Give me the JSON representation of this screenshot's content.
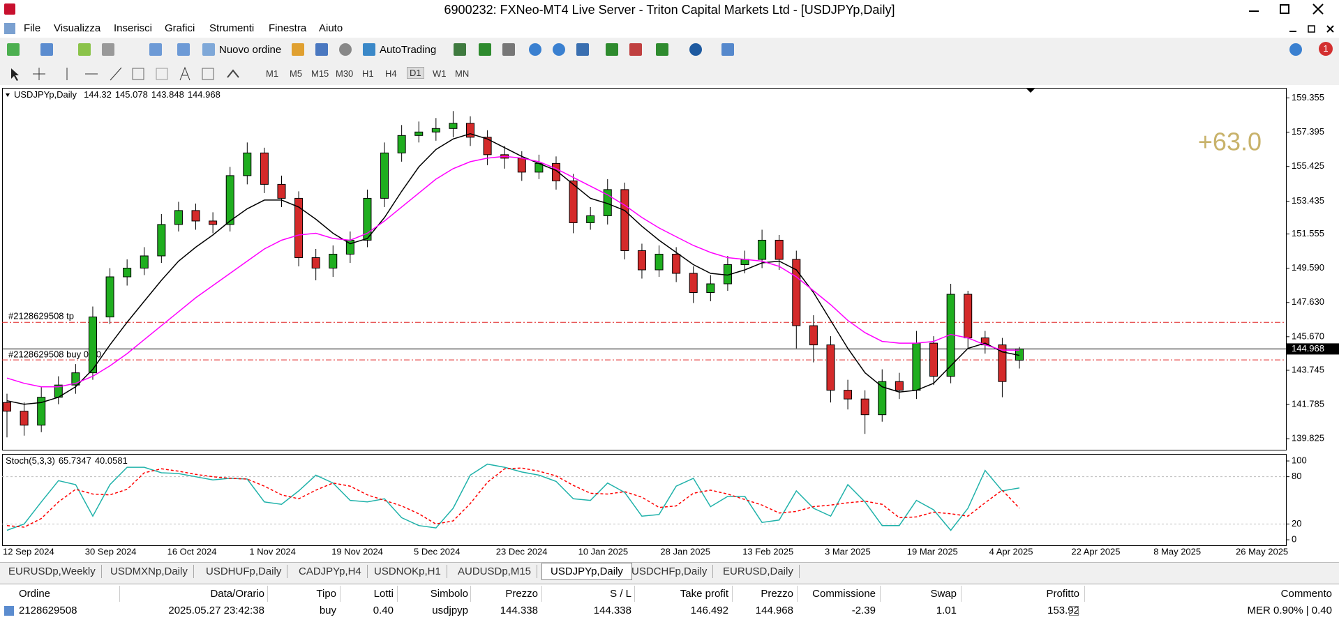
{
  "window": {
    "title": "6900232: FXNeo-MT4 Live Server - Triton Capital Markets Ltd - [USDJPYp,Daily]"
  },
  "menu": [
    "File",
    "Visualizza",
    "Inserisci",
    "Grafici",
    "Strumenti",
    "Finestra",
    "Aiuto"
  ],
  "toolbar": {
    "new_order": "Nuovo ordine",
    "autotrading": "AutoTrading",
    "badge": "1",
    "timeframes": [
      "M1",
      "M5",
      "M15",
      "M30",
      "H1",
      "H4",
      "D1",
      "W1",
      "MN"
    ]
  },
  "chart_data": {
    "type": "candlestick",
    "title": "USDJPYp,Daily",
    "open": [
      141.9,
      141.4,
      140.6,
      142.2,
      142.9,
      143.6,
      146.8,
      149.1,
      149.6,
      150.3,
      152.1,
      152.9,
      152.3,
      152.1,
      154.9,
      156.2,
      154.4,
      153.6,
      150.2,
      149.6,
      150.4,
      151.2,
      153.6,
      156.2,
      157.2,
      157.4,
      157.6,
      157.9,
      157.1,
      156.1,
      155.9,
      155.1,
      155.6,
      154.6,
      152.2,
      152.6,
      154.1,
      150.6,
      149.5,
      150.4,
      149.3,
      148.2,
      148.7,
      149.8,
      150.1,
      151.2,
      150.1,
      146.3,
      145.2,
      142.6,
      142.1,
      141.2,
      143.1,
      142.6,
      145.3,
      143.4,
      148.1,
      145.6,
      145.2,
      144.32
    ],
    "high": [
      142.4,
      141.9,
      142.8,
      143.4,
      144.1,
      147.4,
      149.6,
      150.1,
      150.8,
      152.7,
      153.4,
      153.3,
      152.8,
      155.4,
      156.8,
      156.5,
      154.9,
      154.0,
      150.7,
      150.9,
      151.7,
      154.1,
      156.8,
      157.8,
      158.0,
      158.2,
      158.6,
      158.3,
      157.5,
      156.6,
      156.3,
      156.1,
      156.0,
      155.0,
      153.1,
      154.7,
      154.5,
      151.0,
      150.9,
      150.8,
      149.7,
      149.2,
      150.3,
      150.6,
      151.8,
      151.5,
      150.6,
      146.9,
      145.7,
      143.2,
      142.6,
      143.8,
      143.6,
      146.0,
      145.7,
      148.7,
      148.3,
      146.0,
      145.6,
      145.078
    ],
    "low": [
      139.9,
      140.0,
      140.2,
      141.8,
      142.4,
      143.2,
      146.4,
      148.6,
      149.2,
      149.9,
      151.7,
      151.8,
      151.6,
      151.7,
      154.4,
      153.9,
      153.1,
      149.7,
      148.9,
      149.1,
      149.9,
      150.8,
      153.1,
      155.7,
      156.8,
      156.9,
      157.1,
      156.6,
      155.5,
      155.3,
      154.6,
      154.7,
      154.1,
      151.6,
      151.8,
      152.1,
      150.1,
      149.0,
      149.1,
      148.8,
      147.6,
      147.7,
      148.3,
      149.3,
      149.6,
      149.5,
      145.0,
      144.2,
      141.9,
      141.5,
      140.1,
      140.8,
      142.1,
      142.1,
      142.9,
      143.0,
      145.0,
      144.7,
      142.2,
      143.848
    ],
    "close": [
      141.4,
      140.6,
      142.2,
      142.9,
      143.6,
      146.8,
      149.1,
      149.6,
      150.3,
      152.1,
      152.9,
      152.3,
      152.1,
      154.9,
      156.2,
      154.4,
      153.6,
      150.2,
      149.6,
      150.4,
      151.2,
      153.6,
      156.2,
      157.2,
      157.4,
      157.6,
      157.9,
      157.1,
      156.1,
      155.9,
      155.1,
      155.6,
      154.6,
      152.2,
      152.6,
      154.1,
      150.6,
      149.5,
      150.4,
      149.3,
      148.2,
      148.7,
      149.8,
      150.1,
      151.2,
      150.1,
      146.3,
      145.2,
      142.6,
      142.1,
      141.2,
      143.1,
      142.6,
      145.3,
      143.4,
      148.1,
      145.6,
      145.2,
      143.1,
      144.968
    ],
    "up_color": "#1fae1f",
    "down_color": "#d42a2a",
    "outline_color": "#000000",
    "ma": [
      {
        "color": "#000000",
        "values": [
          142.0,
          141.8,
          141.9,
          142.2,
          142.8,
          143.8,
          145.2,
          146.5,
          147.7,
          148.9,
          150.0,
          150.8,
          151.5,
          152.3,
          153.0,
          153.5,
          153.5,
          153.1,
          152.4,
          151.6,
          151.0,
          151.3,
          152.5,
          154.0,
          155.4,
          156.4,
          157.0,
          157.3,
          157.0,
          156.5,
          156.0,
          155.6,
          155.2,
          154.4,
          153.6,
          153.3,
          152.9,
          152.0,
          151.2,
          150.5,
          149.8,
          149.3,
          149.2,
          149.5,
          149.9,
          150.0,
          149.5,
          148.2,
          146.6,
          145.0,
          143.6,
          142.8,
          142.5,
          142.6,
          143.0,
          144.0,
          145.0,
          145.3,
          144.8,
          144.6
        ]
      },
      {
        "color": "#ff00ff",
        "values": [
          143.3,
          143.0,
          142.8,
          142.8,
          143.0,
          143.4,
          144.0,
          144.7,
          145.5,
          146.3,
          147.1,
          147.9,
          148.6,
          149.3,
          150.0,
          150.7,
          151.2,
          151.5,
          151.6,
          151.3,
          151.2,
          151.6,
          152.3,
          153.1,
          153.9,
          154.7,
          155.3,
          155.7,
          155.9,
          156.0,
          155.9,
          155.7,
          155.3,
          154.8,
          154.3,
          153.8,
          153.2,
          152.5,
          151.9,
          151.4,
          150.9,
          150.5,
          150.2,
          150.1,
          150.0,
          149.7,
          149.1,
          148.3,
          147.5,
          146.6,
          145.9,
          145.4,
          145.3,
          145.3,
          145.4,
          145.8,
          145.6,
          145.2,
          144.9,
          144.9
        ]
      }
    ],
    "ylim": [
      139.19,
      159.89
    ],
    "yticks": [
      159.355,
      157.395,
      155.425,
      153.435,
      151.555,
      {
        "value": 149.59,
        "label": "149.590"
      },
      {
        "value": 147.63,
        "label": "147.630"
      },
      {
        "value": 145.67,
        "label": "145.670"
      },
      143.745,
      141.785,
      139.825
    ],
    "annotations": {
      "tp": "#2128629508 tp",
      "buy": "#2128629508 buy 0.40",
      "profit": "+63.0"
    },
    "xtick_labels": [
      "12 Sep 2024",
      "30 Sep 2024",
      "16 Oct 2024",
      "1 Nov 2024",
      "19 Nov 2024",
      "5 Dec 2024",
      "23 Dec 2024",
      "10 Jan 2025",
      "28 Jan 2025",
      "13 Feb 2025",
      "3 Mar 2025",
      "19 Mar 2025",
      "4 Apr 2025",
      "22 Apr 2025",
      "8 May 2025",
      "26 May 2025"
    ],
    "stochastic": {
      "label": "Stoch(5,3,3)",
      "main_color": "#20b2aa",
      "signal_color": "#ff0000",
      "ylim": [
        -7,
        108
      ],
      "yticks": [
        100,
        80,
        20,
        0
      ],
      "levels": [
        80,
        20
      ],
      "main": [
        12,
        20,
        48,
        75,
        70,
        30,
        70,
        92,
        92,
        85,
        84,
        80,
        76,
        78,
        77,
        48,
        45,
        62,
        82,
        72,
        50,
        48,
        52,
        28,
        18,
        15,
        40,
        82,
        96,
        92,
        86,
        82,
        74,
        52,
        50,
        72,
        60,
        30,
        32,
        68,
        78,
        42,
        55,
        55,
        22,
        25,
        62,
        40,
        30,
        70,
        48,
        18,
        18,
        50,
        38,
        12,
        40,
        88,
        62,
        65.7347
      ],
      "signal": [
        18,
        16,
        27,
        48,
        64,
        58,
        57,
        64,
        85,
        90,
        87,
        83,
        80,
        78,
        77,
        68,
        57,
        52,
        63,
        72,
        68,
        57,
        50,
        43,
        33,
        20,
        24,
        46,
        73,
        90,
        91,
        87,
        81,
        69,
        59,
        58,
        61,
        54,
        41,
        43,
        59,
        63,
        58,
        51,
        44,
        34,
        36,
        42,
        44,
        47,
        49,
        45,
        28,
        29,
        35,
        33,
        30,
        47,
        63,
        40.0581
      ]
    }
  },
  "tabs": [
    {
      "label": "EURUSDp,Weekly"
    },
    {
      "label": "USDMXNp,Daily"
    },
    {
      "label": "USDHUFp,Daily"
    },
    {
      "label": "CADJPYp,H4"
    },
    {
      "label": "USDNOKp,H1"
    },
    {
      "label": "AUDUSDp,M15"
    },
    {
      "label": "USDJPYp,Daily",
      "active": true
    },
    {
      "label": "USDCHFp,Daily"
    },
    {
      "label": "EURUSD,Daily"
    }
  ],
  "terminal": {
    "columns": [
      "Ordine",
      "Data/Orario",
      "Tipo",
      "Lotti",
      "Simbolo",
      "Prezzo",
      "S / L",
      "Take profit",
      "Prezzo",
      "Commissione",
      "Swap",
      "Profitto",
      "Commento"
    ],
    "rows": [
      [
        "2128629508",
        "2025.05.27 23:42:38",
        "buy",
        "0.40",
        "usdjpyp",
        144.338,
        144.338,
        146.492,
        144.968,
        -2.39,
        1.01,
        153.92,
        "MER 0.90% | 0.40"
      ]
    ]
  }
}
